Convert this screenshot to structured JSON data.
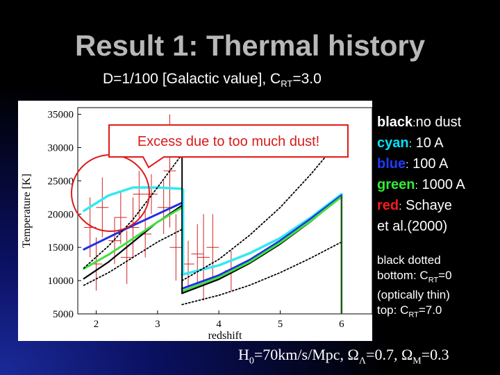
{
  "slide": {
    "title": "Result 1: Thermal history",
    "subtitle_main": "D=1/100 [Galactic value], C",
    "subtitle_sub": "RT",
    "subtitle_tail": "=3.0"
  },
  "annotation": {
    "callout_text": "Excess due to too much dust!"
  },
  "legend": {
    "items": [
      {
        "key": "black",
        "sep": ":",
        "desc": "no dust",
        "color": "#ffffff"
      },
      {
        "key": "cyan",
        "sep": ":",
        "desc": " 10 A",
        "color": "#00e5ff"
      },
      {
        "key": "blue",
        "sep": ":",
        "desc": " 100 A",
        "color": "#1f3cff"
      },
      {
        "key": "green",
        "sep": ":",
        "desc": " 1000 A",
        "color": "#33ee33"
      },
      {
        "key": "red",
        "sep": ":",
        "desc": " Schaye",
        "color": "#ff1a1a"
      }
    ],
    "red_desc_line2": "et al.(2000)"
  },
  "note": {
    "line1": "black dotted",
    "line2_a": "bottom: C",
    "line2_sub": "RT",
    "line2_b": "=0",
    "line3": "(optically thin)",
    "line4_a": "top: C",
    "line4_sub": "RT",
    "line4_b": "=7.0"
  },
  "cosmology": {
    "h0_a": "H",
    "h0_sub": "0",
    "h0_b": "=70km/s/Mpc, Ω",
    "lambda_sub": "Λ",
    "lambda_b": "=0.7, Ω",
    "m_sub": "M",
    "m_b": "=0.3"
  },
  "chart_data": {
    "type": "line",
    "xlabel": "redshift",
    "ylabel": "Temperature [K]",
    "xlim": [
      1.7,
      6.5
    ],
    "ylim": [
      5000,
      36000
    ],
    "xticks": [
      2,
      3,
      4,
      5,
      6
    ],
    "yticks": [
      5000,
      10000,
      15000,
      20000,
      25000,
      30000,
      35000
    ],
    "series": [
      {
        "name": "black",
        "color": "#000000",
        "width": 2.2,
        "dash": "",
        "segments": [
          [
            [
              1.8,
              10300
            ],
            [
              2.2,
              12800
            ],
            [
              2.6,
              15800
            ],
            [
              3.0,
              18800
            ],
            [
              3.4,
              21300
            ]
          ],
          [
            [
              3.4,
              8100
            ],
            [
              4.0,
              10200
            ],
            [
              4.5,
              12600
            ],
            [
              5.0,
              15500
            ],
            [
              5.5,
              18900
            ],
            [
              6.0,
              22700
            ]
          ]
        ]
      },
      {
        "name": "cyan",
        "color": "#33e8f0",
        "width": 3.5,
        "dash": "",
        "segments": [
          [
            [
              1.8,
              20500
            ],
            [
              2.2,
              22800
            ],
            [
              2.6,
              24000
            ],
            [
              3.0,
              24000
            ],
            [
              3.4,
              23800
            ]
          ],
          [
            [
              3.4,
              10900
            ],
            [
              4.0,
              12300
            ],
            [
              4.5,
              14100
            ],
            [
              5.0,
              16400
            ],
            [
              5.5,
              19500
            ],
            [
              6.0,
              23000
            ]
          ]
        ]
      },
      {
        "name": "blue",
        "color": "#1f2fe6",
        "width": 3.0,
        "dash": "",
        "segments": [
          [
            [
              1.8,
              14700
            ],
            [
              2.2,
              16500
            ],
            [
              2.6,
              18300
            ],
            [
              3.0,
              20000
            ],
            [
              3.4,
              21700
            ]
          ],
          [
            [
              3.4,
              8800
            ],
            [
              4.0,
              10800
            ],
            [
              4.5,
              13100
            ],
            [
              5.0,
              16000
            ],
            [
              5.5,
              19300
            ],
            [
              6.0,
              22800
            ]
          ]
        ]
      },
      {
        "name": "green",
        "color": "#3fe03f",
        "width": 3.0,
        "dash": "",
        "segments": [
          [
            [
              1.8,
              11800
            ],
            [
              2.2,
              13900
            ],
            [
              2.6,
              16300
            ],
            [
              3.0,
              18800
            ],
            [
              3.4,
              21000
            ]
          ],
          [
            [
              3.4,
              8400
            ],
            [
              4.0,
              10500
            ],
            [
              4.5,
              12800
            ],
            [
              5.0,
              15700
            ],
            [
              5.5,
              19000
            ],
            [
              6.0,
              22600
            ]
          ]
        ]
      },
      {
        "name": "black dotted bottom",
        "color": "#000000",
        "width": 1.8,
        "dash": "2,3",
        "segments": [
          [
            [
              1.8,
              9300
            ],
            [
              2.2,
              11200
            ],
            [
              2.6,
              13500
            ],
            [
              3.0,
              15800
            ],
            [
              3.4,
              17700
            ]
          ],
          [
            [
              3.4,
              6400
            ],
            [
              4.0,
              7800
            ],
            [
              4.5,
              9300
            ],
            [
              5.0,
              11200
            ],
            [
              5.5,
              13400
            ],
            [
              6.0,
              15800
            ]
          ]
        ]
      },
      {
        "name": "black dotted top",
        "color": "#000000",
        "width": 1.8,
        "dash": "2,3",
        "segments": [
          [
            [
              1.8,
              11900
            ],
            [
              2.2,
              15200
            ],
            [
              2.6,
              19200
            ],
            [
              3.0,
              24000
            ],
            [
              3.4,
              29000
            ]
          ],
          [
            [
              3.4,
              10000
            ],
            [
              4.0,
              13200
            ],
            [
              4.5,
              16800
            ],
            [
              5.0,
              21000
            ],
            [
              5.5,
              26000
            ],
            [
              6.0,
              31500
            ]
          ]
        ]
      }
    ],
    "red_points": [
      {
        "x": 1.9,
        "y": 18000,
        "xerr": 0.1,
        "yerr": 4500
      },
      {
        "x": 2.0,
        "y": 12500,
        "xerr": 0.1,
        "yerr": 4000
      },
      {
        "x": 2.1,
        "y": 21000,
        "xerr": 0.1,
        "yerr": 4500
      },
      {
        "x": 2.3,
        "y": 16000,
        "xerr": 0.1,
        "yerr": 3500
      },
      {
        "x": 2.4,
        "y": 19500,
        "xerr": 0.1,
        "yerr": 4000
      },
      {
        "x": 2.5,
        "y": 13500,
        "xerr": 0.1,
        "yerr": 4000
      },
      {
        "x": 2.6,
        "y": 18000,
        "xerr": 0.1,
        "yerr": 4500
      },
      {
        "x": 2.7,
        "y": 23000,
        "xerr": 0.1,
        "yerr": 3500
      },
      {
        "x": 2.8,
        "y": 17000,
        "xerr": 0.1,
        "yerr": 3500
      },
      {
        "x": 2.9,
        "y": 23000,
        "xerr": 0.1,
        "yerr": 3000
      },
      {
        "x": 3.1,
        "y": 21000,
        "xerr": 0.1,
        "yerr": 4000
      },
      {
        "x": 3.2,
        "y": 26500,
        "xerr": 0.1,
        "yerr": 8500
      },
      {
        "x": 3.3,
        "y": 15000,
        "xerr": 0.1,
        "yerr": 5000
      },
      {
        "x": 3.5,
        "y": 12500,
        "xerr": 0.1,
        "yerr": 3500
      },
      {
        "x": 3.65,
        "y": 14000,
        "xerr": 0.1,
        "yerr": 4500
      },
      {
        "x": 3.75,
        "y": 13500,
        "xerr": 0.1,
        "yerr": 6500
      },
      {
        "x": 3.9,
        "y": 15000,
        "xerr": 0.1,
        "yerr": 5000
      },
      {
        "x": 4.2,
        "y": 11500,
        "xerr": 0.1,
        "yerr": 3000
      }
    ]
  }
}
